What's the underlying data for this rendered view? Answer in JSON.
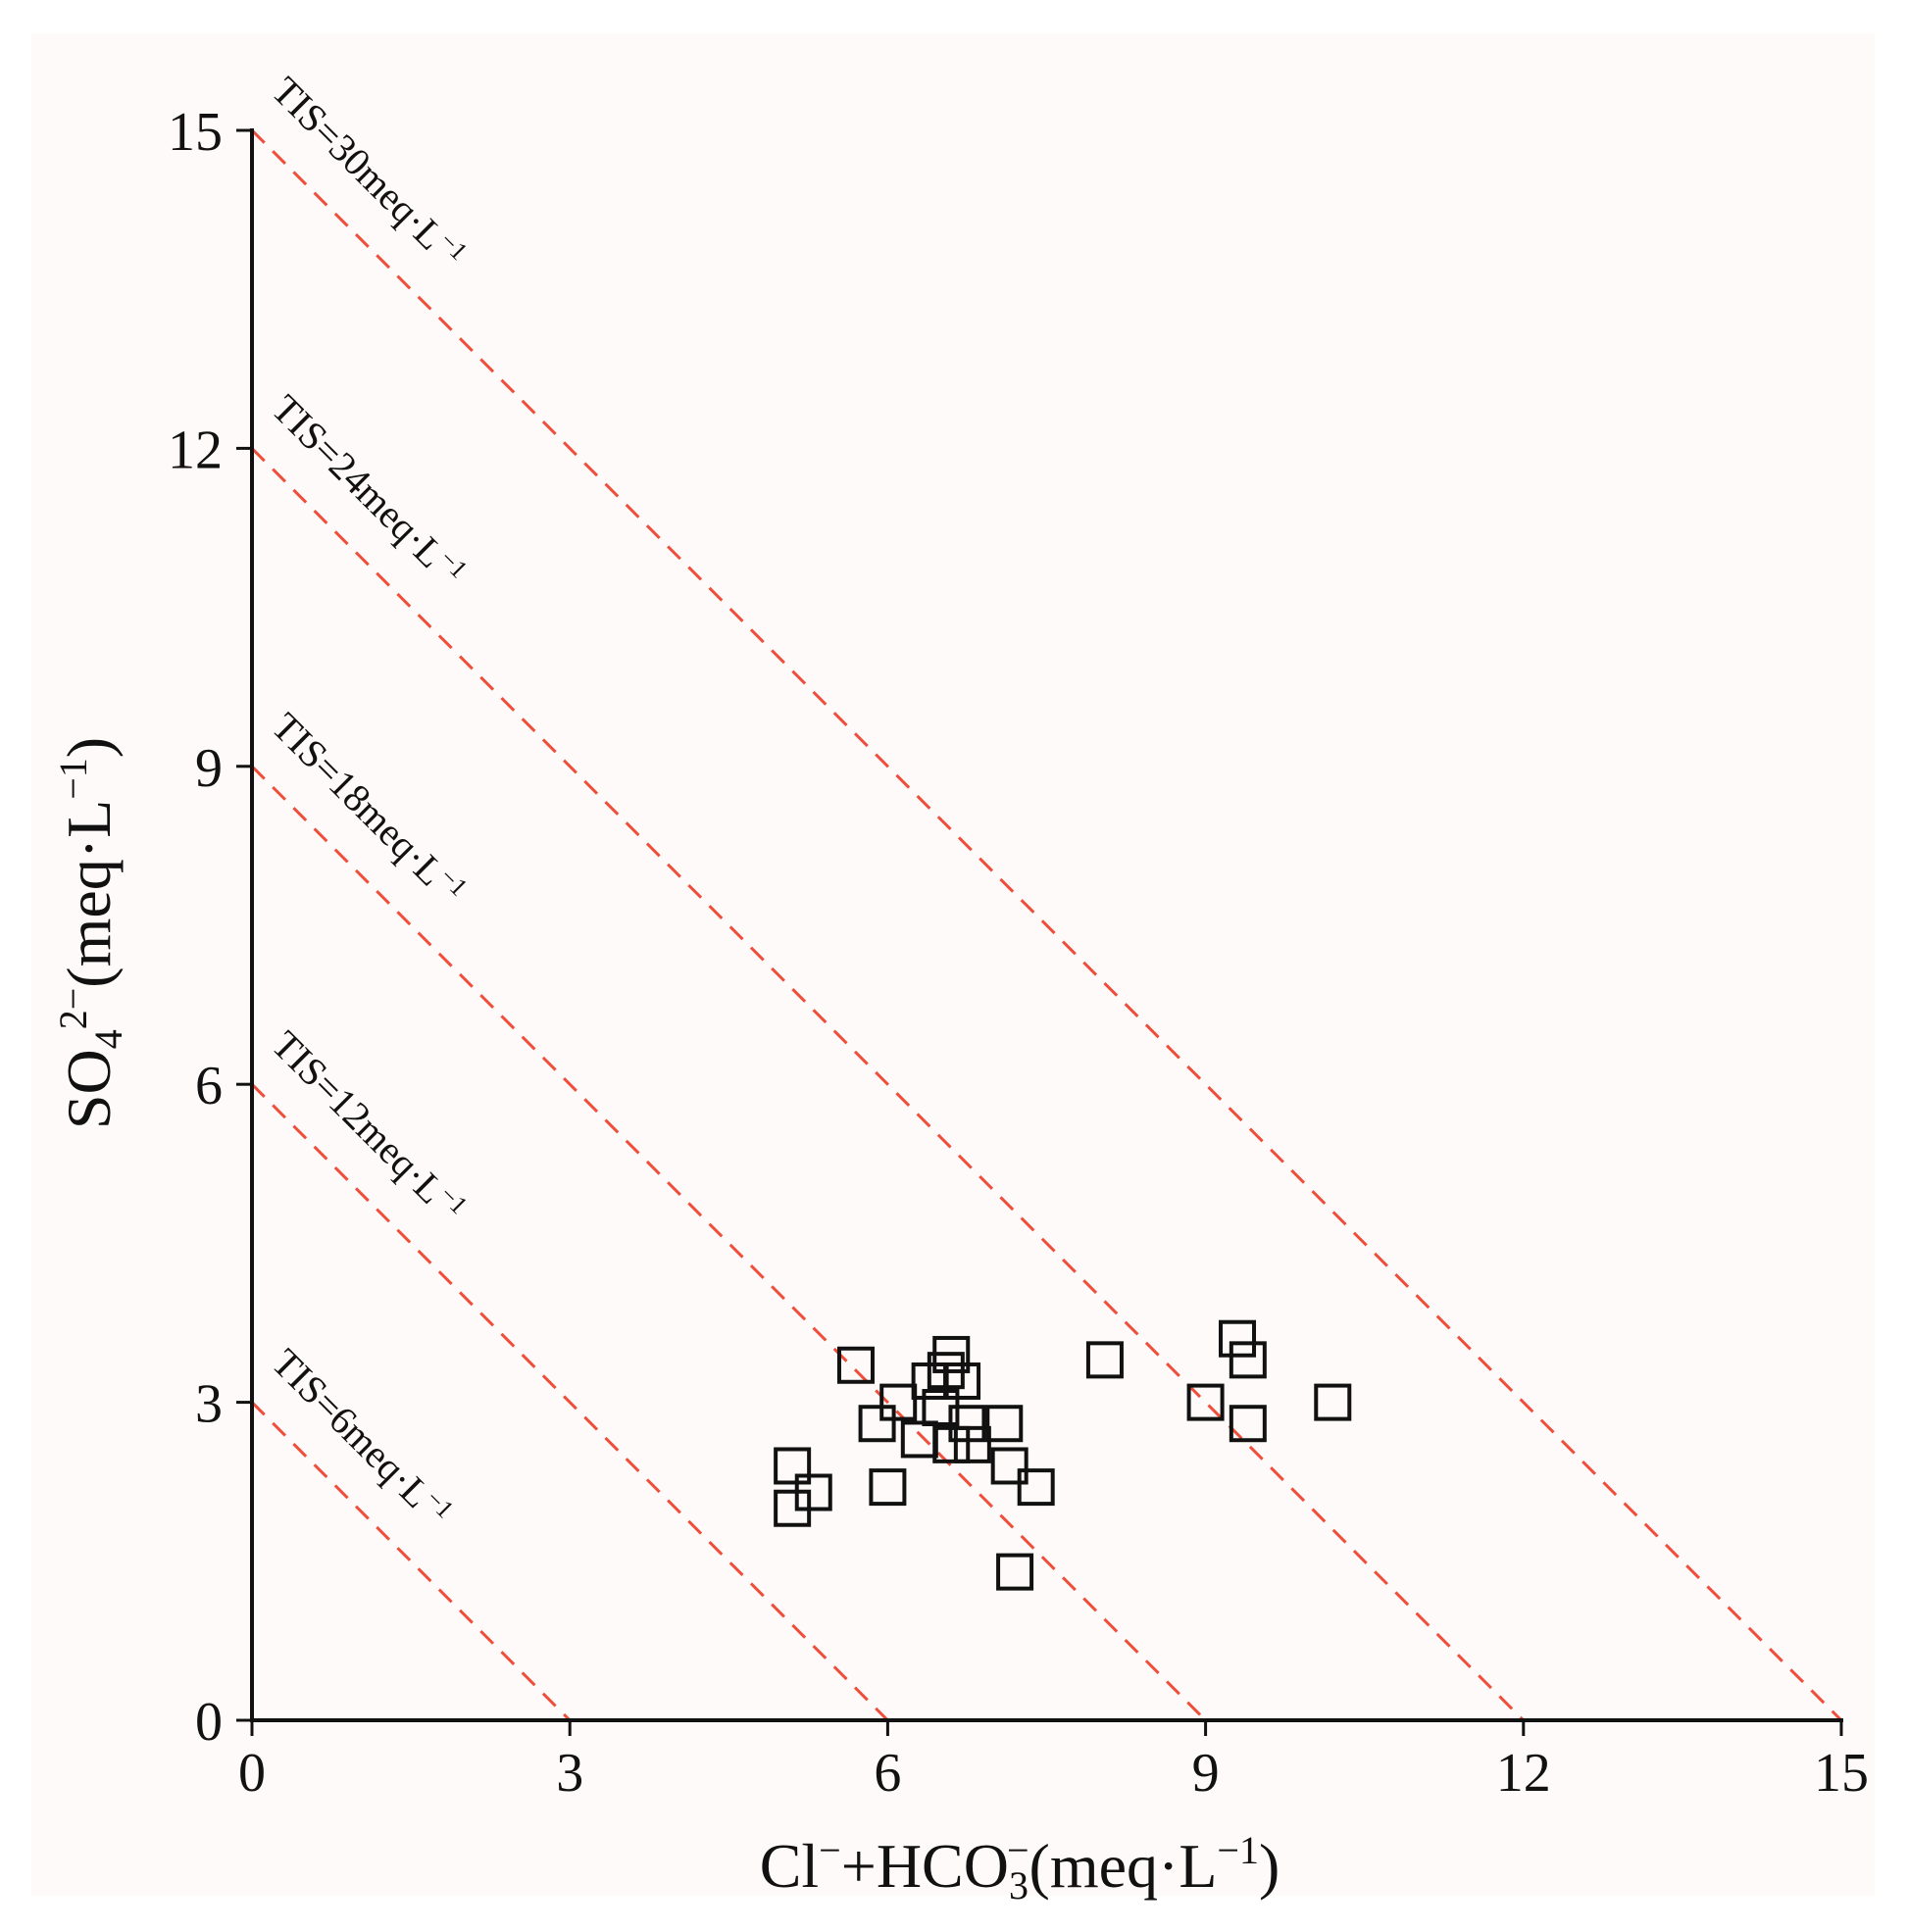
{
  "chart_data": {
    "type": "scatter",
    "title": "",
    "xlabel": "Cl⁻+HCO₃⁻(meq·L⁻¹)",
    "ylabel": "SO₄²⁻(meq·L⁻¹)",
    "xlabel_parts": {
      "pre": "Cl",
      "sup1": "−",
      "mid": "+HCO",
      "sub": "3",
      "sup2": "−",
      "post": "(meq·L",
      "sup3": "−1",
      "end": ")"
    },
    "ylabel_parts": {
      "pre": "SO",
      "sub": "4",
      "sup": "2−",
      "post": "(meq·L",
      "sup2": "−1",
      "end": ")"
    },
    "xlim": [
      0,
      15
    ],
    "ylim": [
      0,
      15
    ],
    "xticks": [
      0,
      3,
      6,
      9,
      12,
      15
    ],
    "yticks": [
      0,
      3,
      6,
      9,
      12,
      15
    ],
    "grid": false,
    "marker": "open-square",
    "colors": {
      "guide_line": "#ef4e3a",
      "marker": "#111111",
      "axis": "#111111",
      "panel": "#fefafa"
    },
    "tis_lines": [
      {
        "label": "TIS=6meq·L⁻¹",
        "text": "TIS=6meq·L",
        "sup": "−1",
        "value": 6,
        "intercept": 3
      },
      {
        "label": "TIS=12meq·L⁻¹",
        "text": "TIS=12meq·L",
        "sup": "−1",
        "value": 12,
        "intercept": 6
      },
      {
        "label": "TIS=18meq·L⁻¹",
        "text": "TIS=18meq·L",
        "sup": "−1",
        "value": 18,
        "intercept": 9
      },
      {
        "label": "TIS=24meq·L⁻¹",
        "text": "TIS=24meq·L",
        "sup": "−1",
        "value": 24,
        "intercept": 12
      },
      {
        "label": "TIS=30meq·L⁻¹",
        "text": "TIS=30meq·L",
        "sup": "−1",
        "value": 30,
        "intercept": 15
      }
    ],
    "points": [
      {
        "x": 5.1,
        "y": 2.4
      },
      {
        "x": 5.3,
        "y": 2.15
      },
      {
        "x": 5.1,
        "y": 2.0
      },
      {
        "x": 5.7,
        "y": 3.35
      },
      {
        "x": 5.9,
        "y": 2.8
      },
      {
        "x": 6.0,
        "y": 2.2
      },
      {
        "x": 6.1,
        "y": 3.0
      },
      {
        "x": 6.3,
        "y": 2.65
      },
      {
        "x": 6.4,
        "y": 3.2
      },
      {
        "x": 6.5,
        "y": 2.95
      },
      {
        "x": 6.6,
        "y": 3.45
      },
      {
        "x": 6.55,
        "y": 3.3
      },
      {
        "x": 6.7,
        "y": 3.2
      },
      {
        "x": 6.6,
        "y": 2.6
      },
      {
        "x": 6.75,
        "y": 2.8
      },
      {
        "x": 6.8,
        "y": 2.6
      },
      {
        "x": 7.1,
        "y": 2.8
      },
      {
        "x": 7.15,
        "y": 2.4
      },
      {
        "x": 7.4,
        "y": 2.2
      },
      {
        "x": 7.2,
        "y": 1.4
      },
      {
        "x": 8.05,
        "y": 3.4
      },
      {
        "x": 9.0,
        "y": 3.0
      },
      {
        "x": 9.3,
        "y": 3.6
      },
      {
        "x": 9.4,
        "y": 3.4
      },
      {
        "x": 9.4,
        "y": 2.8
      },
      {
        "x": 10.2,
        "y": 3.0
      }
    ]
  }
}
